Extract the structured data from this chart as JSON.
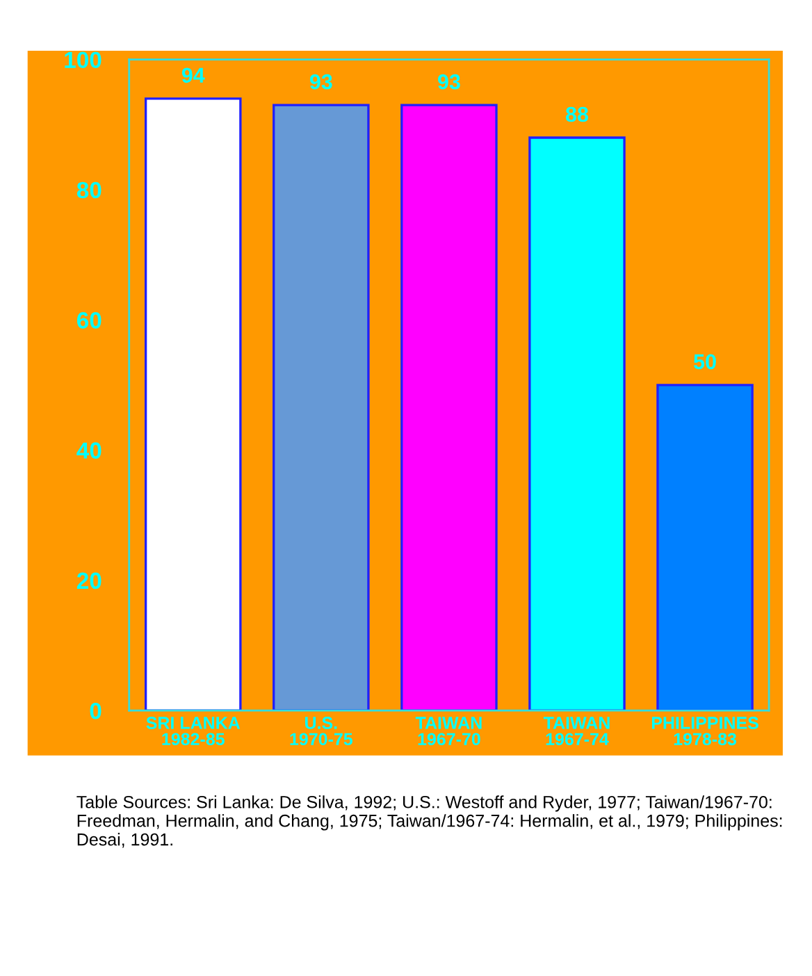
{
  "chart_data": {
    "type": "bar",
    "categories": [
      "SRI LANKA\n1982-85",
      "U.S.\n1970-75",
      "TAIWAN\n1967-70",
      "TAIWAN\n1967-74",
      "PHILIPPINES\n1978-83"
    ],
    "values": [
      94,
      93,
      93,
      88,
      50
    ],
    "colors": [
      "#ffffff",
      "#6699d6",
      "#ff00ff",
      "#00ffff",
      "#0080ff"
    ],
    "ylim": [
      0,
      100
    ],
    "yticks": [
      0,
      20,
      40,
      60,
      80,
      100
    ],
    "data_labels": true,
    "grid": false,
    "legend": false,
    "annotations": [
      "Table Sources: Sri Lanka: De Silva, 1992; U.S.: Westoff and Ryder, 1977; Taiwan/1967-70: Freedman, Hermalin, and Chang, 1975; Taiwan/1967-74: Hermalin, et al., 1979; Philippines: Desai, 1991."
    ]
  }
}
